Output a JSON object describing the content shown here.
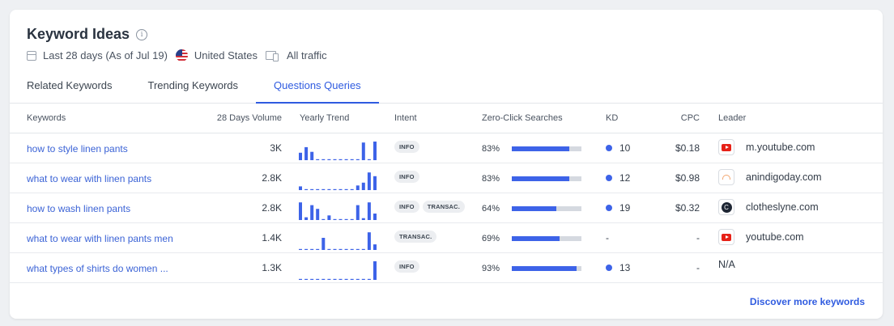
{
  "panel": {
    "title": "Keyword Ideas",
    "info_icon": "info-icon",
    "date_range": "Last 28 days (As of Jul 19)",
    "country": "United States",
    "traffic": "All traffic"
  },
  "tabs": [
    {
      "label": "Related Keywords",
      "active": false
    },
    {
      "label": "Trending Keywords",
      "active": false
    },
    {
      "label": "Questions Queries",
      "active": true
    }
  ],
  "columns": {
    "keywords": "Keywords",
    "volume": "28 Days Volume",
    "trend": "Yearly Trend",
    "intent": "Intent",
    "zero_click": "Zero-Click Searches",
    "kd": "KD",
    "cpc": "CPC",
    "leader": "Leader"
  },
  "rows": [
    {
      "keyword": "how to style linen pants",
      "volume": "3K",
      "trend": [
        0.4,
        0.7,
        0.45,
        0,
        0,
        0,
        0,
        0,
        0,
        0,
        0,
        0.95,
        0,
        1
      ],
      "intents": [
        "INFO"
      ],
      "zero_click": "83%",
      "zero_click_value": 0.83,
      "kd": "10",
      "cpc": "$0.18",
      "leader": "m.youtube.com",
      "leader_icon": "youtube-icon"
    },
    {
      "keyword": "what to wear with linen pants",
      "volume": "2.8K",
      "trend": [
        0.2,
        0,
        0,
        0,
        0,
        0,
        0,
        0,
        0,
        0,
        0.25,
        0.4,
        0.95,
        0.75
      ],
      "intents": [
        "INFO"
      ],
      "zero_click": "83%",
      "zero_click_value": 0.83,
      "kd": "12",
      "cpc": "$0.98",
      "leader": "anindigoday.com",
      "leader_icon": "anindigoday-icon"
    },
    {
      "keyword": "how to wash linen pants",
      "volume": "2.8K",
      "trend": [
        0.95,
        0.15,
        0.8,
        0.6,
        0,
        0.25,
        0,
        0,
        0,
        0,
        0.8,
        0.1,
        0.95,
        0.35
      ],
      "intents": [
        "INFO",
        "TRANSAC."
      ],
      "zero_click": "64%",
      "zero_click_value": 0.64,
      "kd": "19",
      "cpc": "$0.32",
      "leader": "clotheslyne.com",
      "leader_icon": "clotheslyne-icon"
    },
    {
      "keyword": "what to wear with linen pants men",
      "volume": "1.4K",
      "trend": [
        0,
        0,
        0,
        0,
        0.65,
        0,
        0,
        0,
        0,
        0,
        0,
        0,
        0.95,
        0.3
      ],
      "intents": [
        "TRANSAC."
      ],
      "zero_click": "69%",
      "zero_click_value": 0.69,
      "kd": "-",
      "cpc": "-",
      "leader": "youtube.com",
      "leader_icon": "youtube-icon"
    },
    {
      "keyword": "what types of shirts do women ...",
      "volume": "1.3K",
      "trend": [
        0,
        0,
        0,
        0,
        0,
        0,
        0,
        0,
        0,
        0,
        0,
        0,
        0,
        1
      ],
      "intents": [
        "INFO"
      ],
      "zero_click": "93%",
      "zero_click_value": 0.93,
      "kd": "13",
      "cpc": "-",
      "leader": "N/A",
      "leader_icon": ""
    }
  ],
  "footer": {
    "discover": "Discover more keywords"
  },
  "colors": {
    "accent": "#2f5be0",
    "bar": "#3d63e8",
    "bar_bg": "#d5d9e0",
    "youtube": "#e62117"
  }
}
